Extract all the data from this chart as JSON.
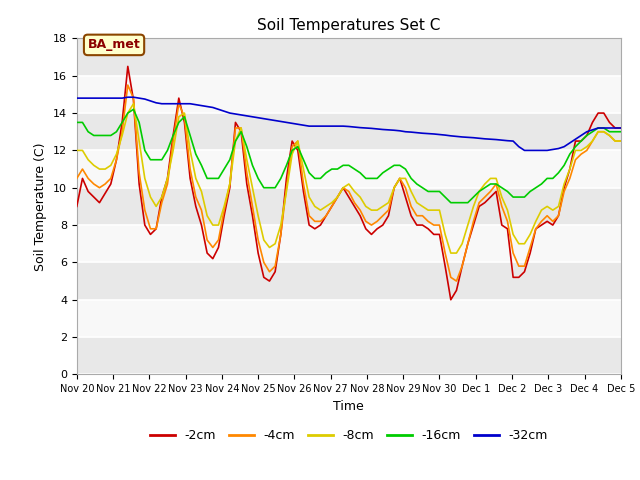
{
  "title": "Soil Temperatures Set C",
  "xlabel": "Time",
  "ylabel": "Soil Temperature (C)",
  "ylim": [
    0,
    18
  ],
  "yticks": [
    0,
    2,
    4,
    6,
    8,
    10,
    12,
    14,
    16,
    18
  ],
  "annotation": "BA_met",
  "legend_labels": [
    "-2cm",
    "-4cm",
    "-8cm",
    "-16cm",
    "-32cm"
  ],
  "legend_colors": [
    "#cc0000",
    "#ff8800",
    "#ddcc00",
    "#00cc00",
    "#0000cc"
  ],
  "xtick_labels": [
    "Nov 20",
    "Nov 21",
    "Nov 22",
    "Nov 23",
    "Nov 24",
    "Nov 25",
    "Nov 26",
    "Nov 27",
    "Nov 28",
    "Nov 29",
    "Nov 30",
    "Dec 1",
    "Dec 2",
    "Dec 3",
    "Dec 4",
    "Dec 5"
  ],
  "series": {
    "m2cm": [
      9.0,
      10.5,
      9.8,
      9.5,
      9.2,
      9.7,
      10.2,
      11.5,
      13.5,
      16.5,
      14.7,
      10.2,
      8.0,
      7.5,
      7.8,
      9.5,
      10.5,
      12.8,
      14.8,
      13.5,
      10.5,
      9.0,
      8.0,
      6.5,
      6.2,
      6.8,
      8.5,
      10.0,
      13.5,
      13.0,
      10.2,
      8.5,
      6.5,
      5.2,
      5.0,
      5.5,
      7.5,
      10.5,
      12.5,
      12.0,
      9.8,
      8.0,
      7.8,
      8.0,
      8.5,
      9.0,
      9.5,
      10.0,
      9.5,
      9.0,
      8.5,
      7.8,
      7.5,
      7.8,
      8.0,
      8.5,
      10.0,
      10.5,
      9.5,
      8.5,
      8.0,
      8.0,
      7.8,
      7.5,
      7.5,
      5.8,
      4.0,
      4.5,
      5.8,
      7.0,
      8.0,
      9.0,
      9.2,
      9.5,
      9.8,
      8.0,
      7.8,
      5.2,
      5.2,
      5.5,
      6.5,
      7.8,
      8.0,
      8.2,
      8.0,
      8.5,
      10.0,
      11.0,
      12.5,
      12.5,
      12.8,
      13.5,
      14.0,
      14.0,
      13.5,
      13.2,
      13.2
    ],
    "m4cm": [
      10.5,
      11.0,
      10.5,
      10.2,
      10.0,
      10.2,
      10.5,
      11.5,
      13.0,
      15.5,
      14.8,
      10.8,
      8.8,
      7.8,
      7.8,
      9.2,
      10.2,
      12.5,
      14.5,
      13.8,
      11.0,
      9.5,
      8.8,
      7.2,
      6.8,
      7.2,
      8.8,
      10.2,
      13.2,
      13.2,
      10.8,
      9.0,
      7.2,
      6.0,
      5.5,
      5.8,
      7.5,
      10.0,
      12.2,
      12.5,
      10.2,
      8.5,
      8.2,
      8.2,
      8.5,
      9.0,
      9.5,
      10.0,
      9.8,
      9.2,
      8.8,
      8.2,
      8.0,
      8.2,
      8.5,
      8.8,
      10.0,
      10.5,
      10.0,
      9.0,
      8.5,
      8.5,
      8.2,
      8.0,
      8.0,
      6.5,
      5.2,
      5.0,
      5.8,
      7.0,
      8.2,
      9.2,
      9.5,
      9.8,
      10.2,
      9.0,
      8.2,
      6.5,
      5.8,
      5.8,
      6.8,
      7.8,
      8.2,
      8.5,
      8.2,
      8.5,
      9.8,
      10.5,
      11.5,
      11.8,
      12.0,
      12.5,
      13.0,
      13.0,
      12.8,
      12.5,
      12.5
    ],
    "m8cm": [
      12.0,
      12.0,
      11.5,
      11.2,
      11.0,
      11.0,
      11.2,
      11.8,
      12.8,
      14.0,
      14.5,
      12.5,
      10.5,
      9.5,
      9.0,
      9.5,
      10.5,
      12.0,
      13.8,
      14.0,
      12.0,
      10.5,
      9.8,
      8.5,
      8.0,
      8.0,
      9.0,
      10.2,
      12.5,
      13.2,
      11.5,
      10.0,
      8.5,
      7.2,
      6.8,
      7.0,
      8.0,
      9.8,
      11.8,
      12.5,
      11.0,
      9.5,
      9.0,
      8.8,
      9.0,
      9.2,
      9.5,
      10.0,
      10.2,
      9.8,
      9.5,
      9.0,
      8.8,
      8.8,
      9.0,
      9.2,
      10.0,
      10.5,
      10.5,
      9.8,
      9.2,
      9.0,
      8.8,
      8.8,
      8.8,
      7.5,
      6.5,
      6.5,
      7.0,
      8.0,
      9.0,
      9.8,
      10.2,
      10.5,
      10.5,
      9.5,
      8.8,
      7.5,
      7.0,
      7.0,
      7.5,
      8.2,
      8.8,
      9.0,
      8.8,
      9.0,
      10.2,
      11.0,
      12.0,
      12.0,
      12.2,
      12.5,
      13.0,
      13.0,
      12.8,
      12.5,
      12.5
    ],
    "m16cm": [
      13.5,
      13.5,
      13.0,
      12.8,
      12.8,
      12.8,
      12.8,
      13.0,
      13.5,
      14.0,
      14.2,
      13.5,
      12.0,
      11.5,
      11.5,
      11.5,
      12.0,
      12.8,
      13.5,
      13.8,
      12.8,
      11.8,
      11.2,
      10.5,
      10.5,
      10.5,
      11.0,
      11.5,
      12.5,
      13.0,
      12.2,
      11.2,
      10.5,
      10.0,
      10.0,
      10.0,
      10.5,
      11.2,
      12.0,
      12.2,
      11.5,
      10.8,
      10.5,
      10.5,
      10.8,
      11.0,
      11.0,
      11.2,
      11.2,
      11.0,
      10.8,
      10.5,
      10.5,
      10.5,
      10.8,
      11.0,
      11.2,
      11.2,
      11.0,
      10.5,
      10.2,
      10.0,
      9.8,
      9.8,
      9.8,
      9.5,
      9.2,
      9.2,
      9.2,
      9.2,
      9.5,
      9.8,
      10.0,
      10.2,
      10.2,
      10.0,
      9.8,
      9.5,
      9.5,
      9.5,
      9.8,
      10.0,
      10.2,
      10.5,
      10.5,
      10.8,
      11.2,
      11.8,
      12.2,
      12.5,
      12.8,
      13.0,
      13.2,
      13.2,
      13.0,
      13.0,
      13.0
    ],
    "m32cm": [
      14.8,
      14.8,
      14.8,
      14.8,
      14.8,
      14.8,
      14.8,
      14.8,
      14.8,
      14.85,
      14.85,
      14.8,
      14.75,
      14.65,
      14.55,
      14.5,
      14.5,
      14.5,
      14.5,
      14.5,
      14.5,
      14.45,
      14.4,
      14.35,
      14.3,
      14.2,
      14.1,
      14.0,
      13.95,
      13.9,
      13.85,
      13.8,
      13.75,
      13.7,
      13.65,
      13.6,
      13.55,
      13.5,
      13.45,
      13.4,
      13.35,
      13.3,
      13.3,
      13.3,
      13.3,
      13.3,
      13.3,
      13.3,
      13.28,
      13.25,
      13.22,
      13.2,
      13.18,
      13.15,
      13.12,
      13.1,
      13.08,
      13.05,
      13.0,
      12.98,
      12.95,
      12.92,
      12.9,
      12.88,
      12.85,
      12.82,
      12.78,
      12.75,
      12.72,
      12.7,
      12.68,
      12.65,
      12.62,
      12.6,
      12.58,
      12.55,
      12.52,
      12.5,
      12.2,
      12.0,
      12.0,
      12.0,
      12.0,
      12.0,
      12.05,
      12.1,
      12.2,
      12.4,
      12.6,
      12.8,
      13.0,
      13.1,
      13.2,
      13.2,
      13.2,
      13.2,
      13.2
    ]
  }
}
